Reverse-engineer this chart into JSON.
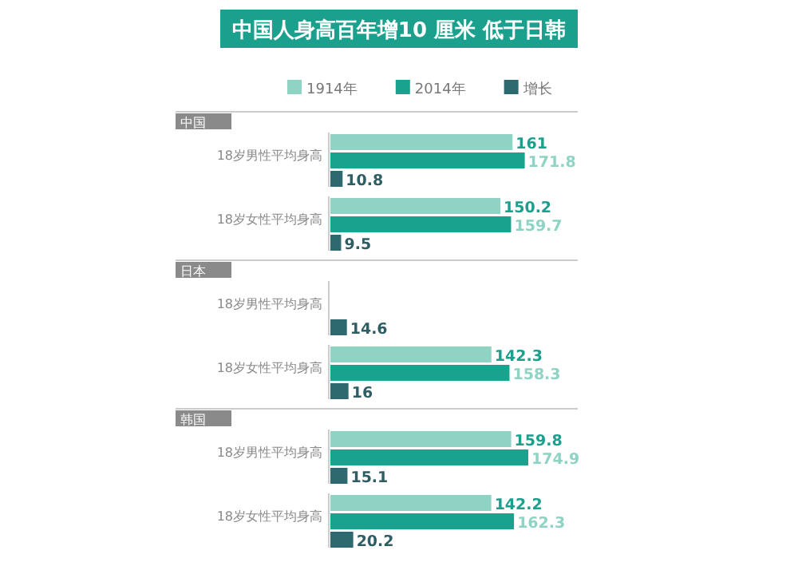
{
  "chart_data": {
    "type": "bar",
    "orientation": "horizontal",
    "title": "中国人身高百年增10 厘米 低于日韩",
    "categories": [
      "18岁男性平均身高",
      "18岁女性平均身高",
      "18岁男性平均身高",
      "18岁女性平均身高",
      "18岁男性平均身高",
      "18岁女性平均身高"
    ],
    "annotations": [
      "中国",
      "日本",
      "韩国"
    ],
    "series": [
      {
        "name": "1914年",
        "color": "#8fd3c5",
        "values": [
          161,
          150.2,
          null,
          142.3,
          159.8,
          142.2
        ]
      },
      {
        "name": "2014年",
        "color": "#17a38d",
        "values": [
          171.8,
          159.7,
          null,
          158.3,
          174.9,
          162.3
        ]
      },
      {
        "name": "增长",
        "color": "#2e6970",
        "values": [
          10.8,
          9.5,
          14.6,
          16.0,
          15.1,
          20.2
        ]
      }
    ],
    "data_labels": true,
    "legend": "top"
  }
}
